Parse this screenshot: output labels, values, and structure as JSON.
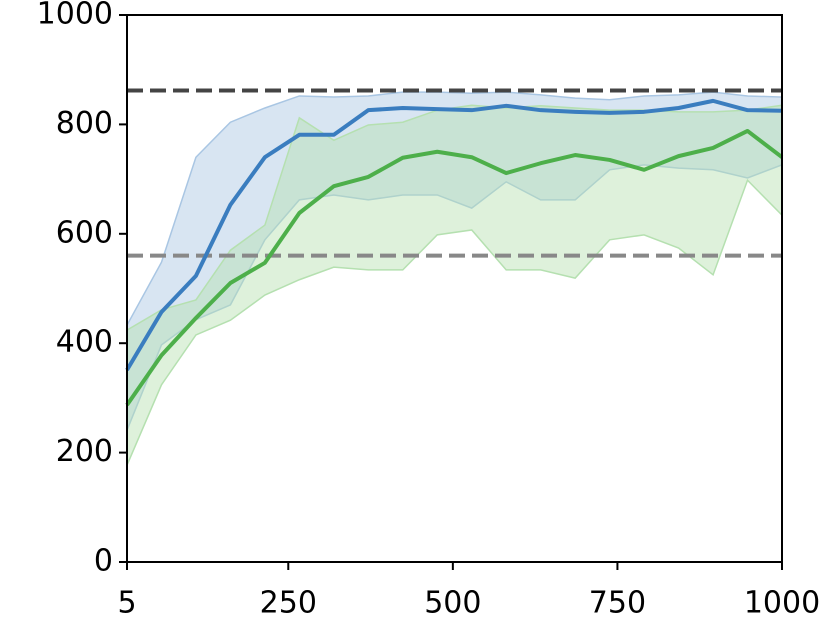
{
  "chart_data": {
    "type": "line",
    "x": [
      5,
      57.4,
      109.7,
      162.1,
      214.5,
      266.8,
      319.2,
      371.6,
      423.9,
      476.3,
      528.7,
      581.0,
      633.4,
      685.8,
      738.2,
      790.5,
      842.9,
      895.3,
      947.6,
      1000
    ],
    "series": [
      {
        "color": "#3a7dbf",
        "band_color": "#a9c6e3",
        "values": [
          351,
          457,
          523,
          653,
          740,
          781,
          781,
          826,
          830,
          828,
          826,
          834,
          826,
          823,
          821,
          823,
          830,
          843,
          826,
          825
        ],
        "upper": [
          433,
          548,
          740,
          804,
          830,
          852,
          850,
          852,
          859,
          859,
          857,
          859,
          854,
          848,
          845,
          852,
          854,
          859,
          852,
          850
        ],
        "lower": [
          241,
          397,
          443,
          470,
          589,
          662,
          671,
          662,
          671,
          671,
          647,
          695,
          662,
          662,
          717,
          726,
          720,
          717,
          702,
          726
        ]
      },
      {
        "color": "#4daf4a",
        "band_color": "#b5e0b0",
        "values": [
          287,
          378,
          446,
          510,
          547,
          638,
          687,
          704,
          739,
          750,
          740,
          711,
          729,
          744,
          735,
          717,
          742,
          757,
          788,
          740
        ],
        "upper": [
          424,
          461,
          479,
          570,
          616,
          812,
          771,
          799,
          804,
          826,
          835,
          830,
          834,
          830,
          826,
          826,
          823,
          823,
          826,
          835
        ],
        "lower": [
          177,
          324,
          415,
          442,
          488,
          516,
          539,
          534,
          534,
          598,
          607,
          534,
          534,
          519,
          589,
          598,
          574,
          525,
          698,
          634
        ]
      }
    ],
    "hlines": [
      {
        "value": 862,
        "color": "#444444"
      },
      {
        "value": 560,
        "color": "#888888"
      }
    ],
    "xlim": [
      5,
      1000
    ],
    "xticks": [
      5,
      250,
      500,
      750,
      1000
    ],
    "ylim": [
      0,
      1000
    ],
    "yticks": [
      0,
      200,
      400,
      600,
      800,
      1000
    ]
  }
}
